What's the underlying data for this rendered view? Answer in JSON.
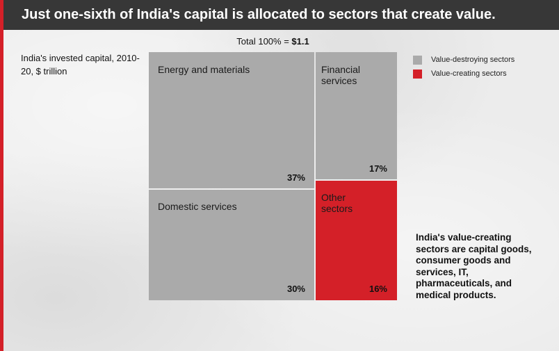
{
  "title": "Just one-sixth of India's capital is allocated to sectors that create value.",
  "colors": {
    "accent": "#d42028",
    "destroying": "#aaaaaa",
    "creating": "#d42028",
    "title_bar": "#373737"
  },
  "chart_data": {
    "type": "treemap",
    "subtitle": "India's invested capital, 2010-20, $ trillion",
    "total_label_prefix": "Total 100% =",
    "total_value": "$1.1",
    "legend": [
      {
        "label": "Value-destroying sectors",
        "group": "destroying"
      },
      {
        "label": "Value-creating sectors",
        "group": "creating"
      }
    ],
    "tiles": [
      {
        "name": "Energy and materials",
        "value": 37,
        "label": "37%",
        "group": "destroying"
      },
      {
        "name": "Domestic services",
        "value": 30,
        "label": "30%",
        "group": "destroying"
      },
      {
        "name": "Financial services",
        "value": 17,
        "label": "17%",
        "group": "destroying"
      },
      {
        "name": "Other sectors",
        "value": 16,
        "label": "16%",
        "group": "creating"
      }
    ]
  },
  "note": "India's value-creating sectors are capital goods, consumer goods and services, IT, pharmaceuticals, and medical products."
}
